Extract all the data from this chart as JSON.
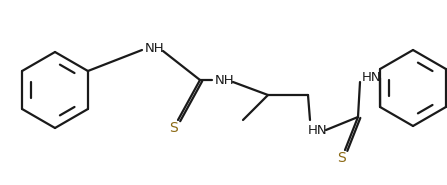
{
  "bg_color": "#ffffff",
  "line_color": "#1a1a1a",
  "nh_color": "#1a1a1a",
  "s_color": "#8B6914",
  "lw": 1.6,
  "figsize": [
    4.47,
    1.85
  ],
  "dpi": 100,
  "xlim": [
    0,
    447
  ],
  "ylim": [
    0,
    185
  ]
}
